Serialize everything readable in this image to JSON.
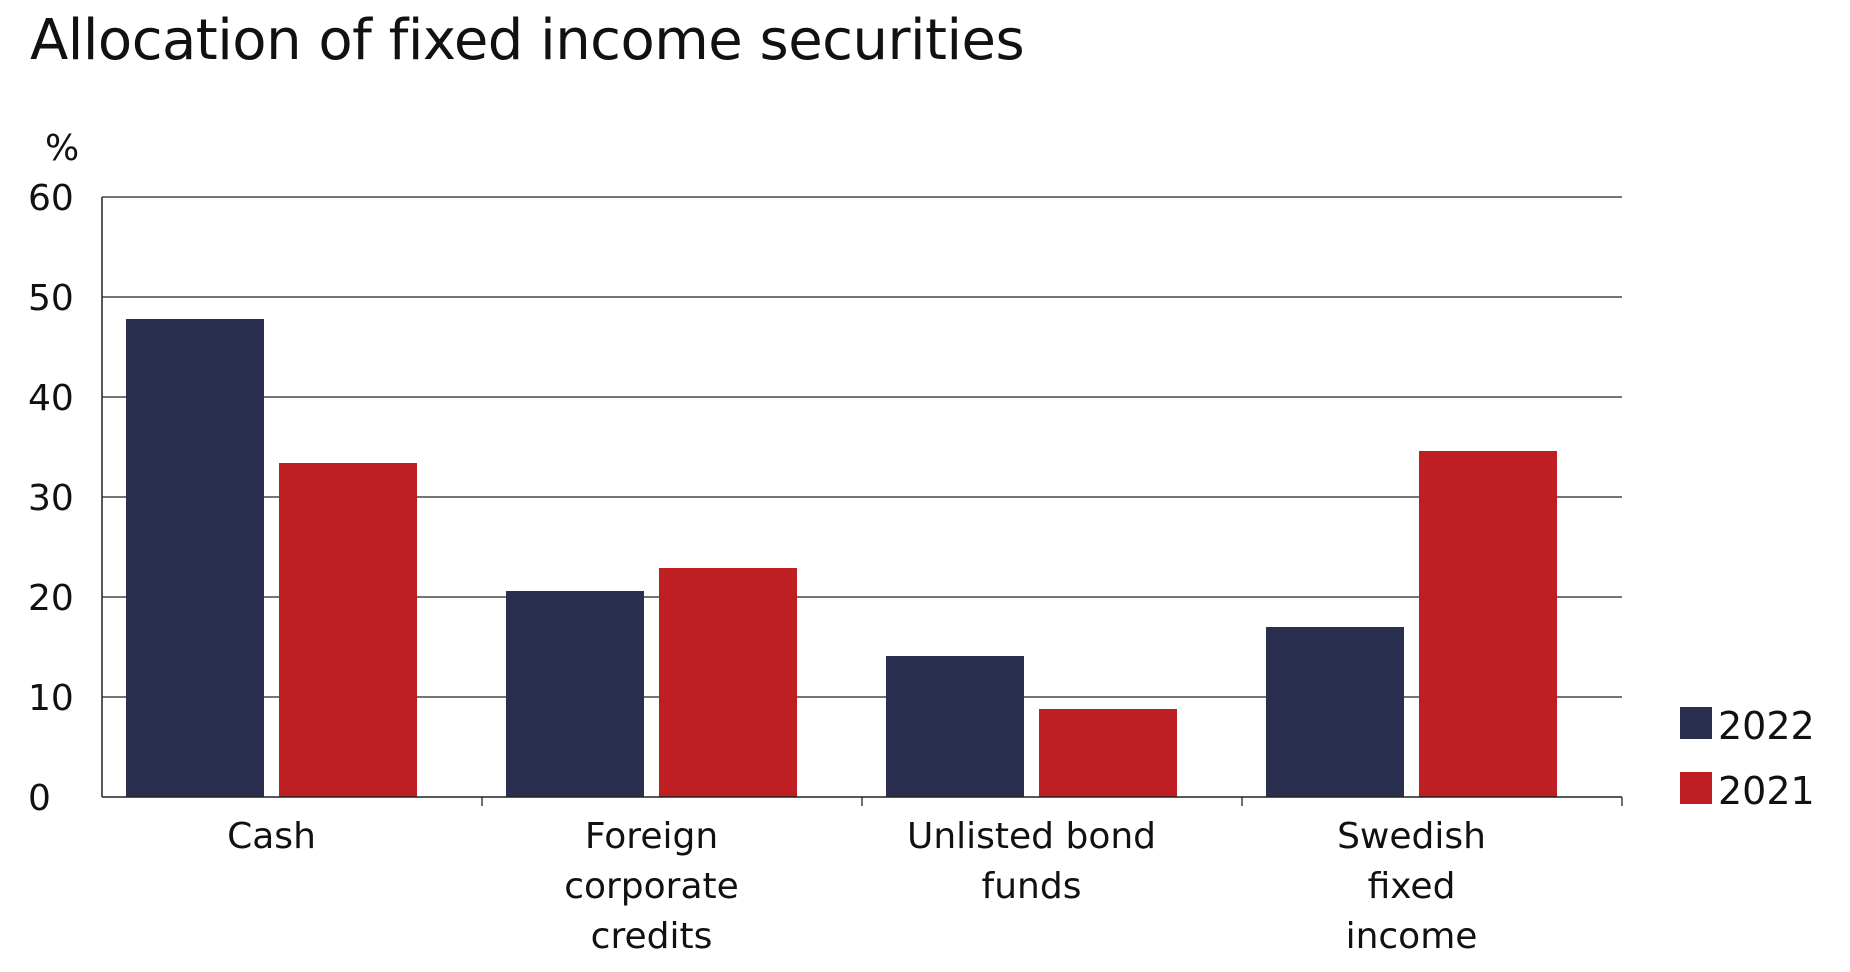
{
  "chart_data": {
    "type": "bar",
    "title": "Allocation of fixed income securities",
    "ylabel": "%",
    "xlabel": "",
    "ylim": [
      0,
      60
    ],
    "yticks": [
      0,
      10,
      20,
      30,
      40,
      50,
      60
    ],
    "grid": true,
    "legend_position": "right",
    "categories": [
      [
        "Cash"
      ],
      [
        "Foreign",
        "corporate",
        "credits"
      ],
      [
        "Unlisted bond",
        "funds"
      ],
      [
        "Swedish",
        "fixed",
        "income"
      ]
    ],
    "series": [
      {
        "name": "2022",
        "color": "#2a2f50",
        "values": [
          47.8,
          20.6,
          14.1,
          17.0
        ]
      },
      {
        "name": "2021",
        "color": "#bd1f23",
        "values": [
          33.4,
          22.9,
          8.8,
          34.6
        ]
      }
    ]
  }
}
